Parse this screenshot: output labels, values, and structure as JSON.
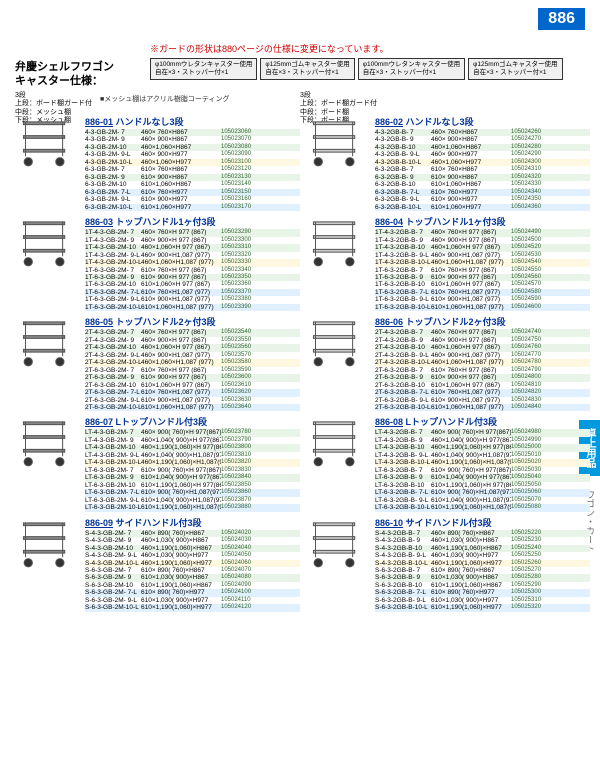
{
  "pageNum": "886",
  "notice": "※ガードの形状は880ページの仕様に変更になっています。",
  "title1": "弁慶シェルフワゴン",
  "title2": "キャスター仕様：",
  "casters": [
    {
      "l1": "φ100mmウレタンキャスター使用",
      "l2": "自在×3・ストッパー付×1"
    },
    {
      "l1": "φ125mmゴムキャスター使用",
      "l2": "自在×3・ストッパー付×1"
    },
    {
      "l1": "φ100mmウレタンキャスター使用",
      "l2": "自在×3・ストッパー付×1"
    },
    {
      "l1": "φ125mmゴムキャスター使用",
      "l2": "自在×3・ストッパー付×1"
    }
  ],
  "tierLeft": "3段\n上段：ボード棚ガード付\n中段：メッシュ棚\n下段：メッシュ棚",
  "tierRight": "3段\n上段：ボード棚ガード付\n中段：ボード棚\n下段：ボード棚",
  "meshNote": "■メッシュ棚はアクリル樹脂コーティング",
  "sideTab": "卓上用品",
  "sideLabel": "ワゴン・カート",
  "colors": {
    "accent": "#0066cc",
    "link": "#003399",
    "notice": "#cc0000",
    "alt1": "#e8f4e8",
    "alt2": "#fff8e0",
    "alt3": "#e0f0ff"
  },
  "sections": [
    {
      "left": {
        "code": "886-01",
        "title": "ハンドルなし3段",
        "rows": [
          {
            "m": "4-3-GB-2M- 7",
            "d": "460× 760×H867",
            "p": "105023060"
          },
          {
            "m": "4-3-GB-2M- 9",
            "d": "460× 900×H867",
            "p": "105023070"
          },
          {
            "m": "4-3-GB-2M-10",
            "d": "460×1,060×H867",
            "p": "105023080"
          },
          {
            "m": "4-3-GB-2M- 9-L",
            "d": "460× 900×H977",
            "p": "105023090"
          },
          {
            "m": "4-3-GB-2M-10-L",
            "d": "460×1,060×H977",
            "p": "105023100"
          },
          {
            "m": "6-3-GB-2M- 7",
            "d": "610× 760×H867",
            "p": "105023120"
          },
          {
            "m": "6-3-GB-2M- 9",
            "d": "610× 900×H867",
            "p": "105023130"
          },
          {
            "m": "6-3-GB-2M-10",
            "d": "610×1,060×H867",
            "p": "105023140"
          },
          {
            "m": "6-3-GB-2M- 7-L",
            "d": "610× 760×H977",
            "p": "105023150"
          },
          {
            "m": "6-3-GB-2M- 9-L",
            "d": "610× 900×H977",
            "p": "105023160"
          },
          {
            "m": "6-3-GB-2M-10-L",
            "d": "610×1,060×H977",
            "p": "105023170"
          }
        ]
      },
      "right": {
        "code": "886-02",
        "title": "ハンドルなし3段",
        "rows": [
          {
            "m": "4-3-2GB-B- 7",
            "d": "460× 760×H867",
            "p": "105024260"
          },
          {
            "m": "4-3-2GB-B- 9",
            "d": "460× 900×H867",
            "p": "105024270"
          },
          {
            "m": "4-3-2GB-B-10",
            "d": "460×1,060×H867",
            "p": "105024280"
          },
          {
            "m": "4-3-2GB-B- 9-L",
            "d": "460× 900×H977",
            "p": "105024290"
          },
          {
            "m": "4-3-2GB-B-10-L",
            "d": "460×1,060×H977",
            "p": "105024300"
          },
          {
            "m": "6-3-2GB-B- 7",
            "d": "610× 760×H867",
            "p": "105024310"
          },
          {
            "m": "6-3-2GB-B- 9",
            "d": "610× 900×H867",
            "p": "105024320"
          },
          {
            "m": "6-3-2GB-B-10",
            "d": "610×1,060×H867",
            "p": "105024330"
          },
          {
            "m": "6-3-2GB-B- 7-L",
            "d": "610× 760×H977",
            "p": "105024340"
          },
          {
            "m": "6-3-2GB-B- 9-L",
            "d": "610× 900×H977",
            "p": "105024350"
          },
          {
            "m": "6-3-2GB-B-10-L",
            "d": "610×1,060×H977",
            "p": "105024360"
          }
        ]
      }
    },
    {
      "left": {
        "code": "886-03",
        "title": "トップハンドル1ヶ付3段",
        "rows": [
          {
            "m": "1T-4-3-GB-2M- 7",
            "d": "460× 760×H 977 (867)",
            "p": "105023290"
          },
          {
            "m": "1T-4-3-GB-2M- 9",
            "d": "460× 900×H 977 (867)",
            "p": "105023300"
          },
          {
            "m": "1T-4-3-GB-2M-10",
            "d": "460×1,060×H 977 (867)",
            "p": "105023310"
          },
          {
            "m": "1T-4-3-GB-2M- 9-L",
            "d": "460× 900×H1,087 (977)",
            "p": "105023320"
          },
          {
            "m": "1T-4-3-GB-2M-10-L",
            "d": "460×1,060×H1,087 (977)",
            "p": "105023330"
          },
          {
            "m": "1T-6-3-GB-2M- 7",
            "d": "610× 760×H 977 (867)",
            "p": "105023340"
          },
          {
            "m": "1T-6-3-GB-2M- 9",
            "d": "610× 900×H 977 (867)",
            "p": "105023350"
          },
          {
            "m": "1T-6-3-GB-2M-10",
            "d": "610×1,060×H 977 (867)",
            "p": "105023360"
          },
          {
            "m": "1T-6-3-GB-2M- 7-L",
            "d": "610× 760×H1,087 (977)",
            "p": "105023370"
          },
          {
            "m": "1T-6-3-GB-2M- 9-L",
            "d": "610× 900×H1,087 (977)",
            "p": "105023380"
          },
          {
            "m": "1T-6-3-GB-2M-10-L",
            "d": "610×1,060×H1,087 (977)",
            "p": "105023390"
          }
        ]
      },
      "right": {
        "code": "886-04",
        "title": "トップハンドル1ヶ付3段",
        "rows": [
          {
            "m": "1T-4-3-2GB-B- 7",
            "d": "460× 760×H 977 (867)",
            "p": "105024490"
          },
          {
            "m": "1T-4-3-2GB-B- 9",
            "d": "460× 900×H 977 (867)",
            "p": "105024500"
          },
          {
            "m": "1T-4-3-2GB-B-10",
            "d": "460×1,060×H 977 (867)",
            "p": "105024520"
          },
          {
            "m": "1T-4-3-2GB-B- 9-L",
            "d": "460× 900×H1,087 (977)",
            "p": "105024530"
          },
          {
            "m": "1T-4-3-2GB-B-10-L",
            "d": "460×1,060×H1,087 (977)",
            "p": "105024540"
          },
          {
            "m": "1T-6-3-2GB-B- 7",
            "d": "610× 760×H 977 (867)",
            "p": "105024550"
          },
          {
            "m": "1T-6-3-2GB-B- 9",
            "d": "610× 900×H 977 (867)",
            "p": "105024560"
          },
          {
            "m": "1T-6-3-2GB-B-10",
            "d": "610×1,060×H 977 (867)",
            "p": "105024570"
          },
          {
            "m": "1T-6-3-2GB-B- 7-L",
            "d": "610× 760×H1,087 (977)",
            "p": "105024580"
          },
          {
            "m": "1T-6-3-2GB-B- 9-L",
            "d": "610× 900×H1,087 (977)",
            "p": "105024590"
          },
          {
            "m": "1T-6-3-2GB-B-10-L",
            "d": "610×1,060×H1,087 (977)",
            "p": "105024600"
          }
        ]
      }
    },
    {
      "left": {
        "code": "886-05",
        "title": "トップハンドル2ヶ付3段",
        "rows": [
          {
            "m": "2T-4-3-GB-2M- 7",
            "d": "460× 760×H 977 (867)",
            "p": "105023540"
          },
          {
            "m": "2T-4-3-GB-2M- 9",
            "d": "460× 900×H 977 (867)",
            "p": "105023550"
          },
          {
            "m": "2T-4-3-GB-2M-10",
            "d": "460×1,060×H 977 (867)",
            "p": "105023560"
          },
          {
            "m": "2T-4-3-GB-2M- 9-L",
            "d": "460× 900×H1,087 (977)",
            "p": "105023570"
          },
          {
            "m": "2T-4-3-GB-2M-10-L",
            "d": "460×1,060×H1,087 (977)",
            "p": "105023580"
          },
          {
            "m": "2T-6-3-GB-2M- 7",
            "d": "610× 760×H 977 (867)",
            "p": "105023590"
          },
          {
            "m": "2T-6-3-GB-2M- 9",
            "d": "610× 900×H 977 (867)",
            "p": "105023600"
          },
          {
            "m": "2T-6-3-GB-2M-10",
            "d": "610×1,060×H 977 (867)",
            "p": "105023610"
          },
          {
            "m": "2T-6-3-GB-2M- 7-L",
            "d": "610× 760×H1,087 (977)",
            "p": "105023620"
          },
          {
            "m": "2T-6-3-GB-2M- 9-L",
            "d": "610× 900×H1,087 (977)",
            "p": "105023630"
          },
          {
            "m": "2T-6-3-GB-2M-10-L",
            "d": "610×1,060×H1,087 (977)",
            "p": "105023640"
          }
        ]
      },
      "right": {
        "code": "886-06",
        "title": "トップハンドル2ヶ付3段",
        "rows": [
          {
            "m": "2T-4-3-2GB-B- 7",
            "d": "460× 760×H 977 (867)",
            "p": "105024740"
          },
          {
            "m": "2T-4-3-2GB-B- 9",
            "d": "460× 900×H 977 (867)",
            "p": "105024750"
          },
          {
            "m": "2T-4-3-2GB-B-10",
            "d": "460×1,060×H 977 (867)",
            "p": "105024760"
          },
          {
            "m": "2T-4-3-2GB-B- 9-L",
            "d": "460× 900×H1,087 (977)",
            "p": "105024770"
          },
          {
            "m": "2T-4-3-2GB-B-10-L",
            "d": "460×1,060×H1,087 (977)",
            "p": "105024780"
          },
          {
            "m": "2T-6-3-2GB-B- 7",
            "d": "610× 760×H 977 (867)",
            "p": "105024790"
          },
          {
            "m": "2T-6-3-2GB-B- 9",
            "d": "610× 900×H 977 (867)",
            "p": "105024800"
          },
          {
            "m": "2T-6-3-2GB-B-10",
            "d": "610×1,060×H 977 (867)",
            "p": "105024810"
          },
          {
            "m": "2T-6-3-2GB-B- 7-L",
            "d": "610× 760×H1,087 (977)",
            "p": "105024820"
          },
          {
            "m": "2T-6-3-2GB-B- 9-L",
            "d": "610× 900×H1,087 (977)",
            "p": "105024830"
          },
          {
            "m": "2T-6-3-2GB-B-10-L",
            "d": "610×1,060×H1,087 (977)",
            "p": "105024840"
          }
        ]
      }
    },
    {
      "left": {
        "code": "886-07",
        "title": "Lトップハンドル付3段",
        "rows": [
          {
            "m": "LT-4-3-GB-2M- 7",
            "d": "460× 900( 760)×H 977(867)",
            "p": "105023780"
          },
          {
            "m": "LT-4-3-GB-2M- 9",
            "d": "460×1,040( 900)×H 977(867)",
            "p": "105023790"
          },
          {
            "m": "LT-4-3-GB-2M-10",
            "d": "460×1,190(1,060)×H 977(867)",
            "p": "105023800"
          },
          {
            "m": "LT-4-3-GB-2M- 9-L",
            "d": "460×1,040( 900)×H1,087(977)",
            "p": "105023810"
          },
          {
            "m": "LT-4-3-GB-2M-10-L",
            "d": "460×1,190(1,060)×H1,087(977)",
            "p": "105023820"
          },
          {
            "m": "LT-6-3-GB-2M- 7",
            "d": "610× 900( 760)×H 977(867)",
            "p": "105023830"
          },
          {
            "m": "LT-6-3-GB-2M- 9",
            "d": "610×1,040( 900)×H 977(867)",
            "p": "105023840"
          },
          {
            "m": "LT-6-3-GB-2M-10",
            "d": "610×1,190(1,060)×H 977(867)",
            "p": "105023850"
          },
          {
            "m": "LT-6-3-GB-2M- 7-L",
            "d": "610× 900( 760)×H1,087(977)",
            "p": "105023860"
          },
          {
            "m": "LT-6-3-GB-2M- 9-L",
            "d": "610×1,040( 900)×H1,087(977)",
            "p": "105023870"
          },
          {
            "m": "LT-6-3-GB-2M-10-L",
            "d": "610×1,190(1,060)×H1,087(977)",
            "p": "105023880"
          }
        ]
      },
      "right": {
        "code": "886-08",
        "title": "Lトップハンドル付3段",
        "rows": [
          {
            "m": "LT-4-3-2GB-B- 7",
            "d": "460× 900( 760)×H 977(867)",
            "p": "105024980"
          },
          {
            "m": "LT-4-3-2GB-B- 9",
            "d": "460×1,040( 900)×H 977(867)",
            "p": "105024990"
          },
          {
            "m": "LT-4-3-2GB-B-10",
            "d": "460×1,190(1,060)×H 977(867)",
            "p": "105025000"
          },
          {
            "m": "LT-4-3-2GB-B- 9-L",
            "d": "460×1,040( 900)×H1,087(977)",
            "p": "105025010"
          },
          {
            "m": "LT-4-3-2GB-B-10-L",
            "d": "460×1,190(1,060)×H1,087(977)",
            "p": "105025020"
          },
          {
            "m": "LT-6-3-2GB-B- 7",
            "d": "610× 900( 760)×H 977(867)",
            "p": "105025030"
          },
          {
            "m": "LT-6-3-2GB-B- 9",
            "d": "610×1,040( 900)×H 977(867)",
            "p": "105025040"
          },
          {
            "m": "LT-6-3-2GB-B-10",
            "d": "610×1,190(1,060)×H 977(867)",
            "p": "105025050"
          },
          {
            "m": "LT-6-3-2GB-B- 7-L",
            "d": "610× 900( 760)×H1,087(977)",
            "p": "105025060"
          },
          {
            "m": "LT-6-3-2GB-B- 9-L",
            "d": "610×1,040( 900)×H1,087(977)",
            "p": "105025070"
          },
          {
            "m": "LT-6-3-2GB-B-10-L",
            "d": "610×1,190(1,060)×H1,087(977)",
            "p": "105025080"
          }
        ]
      }
    },
    {
      "left": {
        "code": "886-09",
        "title": "サイドハンドル付3段",
        "rows": [
          {
            "m": "S-4-3-GB-2M- 7",
            "d": "460× 890( 760)×H867",
            "p": "105024020"
          },
          {
            "m": "S-4-3-GB-2M- 9",
            "d": "460×1,030( 900)×H867",
            "p": "105024030"
          },
          {
            "m": "S-4-3-GB-2M-10",
            "d": "460×1,190(1,060)×H867",
            "p": "105024040"
          },
          {
            "m": "S-4-3-GB-2M- 9-L",
            "d": "460×1,030( 900)×H977",
            "p": "105024050"
          },
          {
            "m": "S-4-3-GB-2M-10-L",
            "d": "460×1,190(1,060)×H977",
            "p": "105024060"
          },
          {
            "m": "S-6-3-GB-2M- 7",
            "d": "610× 890( 760)×H867",
            "p": "105024070"
          },
          {
            "m": "S-6-3-GB-2M- 9",
            "d": "610×1,030( 900)×H867",
            "p": "105024080"
          },
          {
            "m": "S-6-3-GB-2M-10",
            "d": "610×1,190(1,060)×H867",
            "p": "105024090"
          },
          {
            "m": "S-6-3-GB-2M- 7-L",
            "d": "610× 890( 760)×H977",
            "p": "105024100"
          },
          {
            "m": "S-6-3-GB-2M- 9-L",
            "d": "610×1,030( 900)×H977",
            "p": "105024110"
          },
          {
            "m": "S-6-3-GB-2M-10-L",
            "d": "610×1,190(1,060)×H977",
            "p": "105024120"
          }
        ]
      },
      "right": {
        "code": "886-10",
        "title": "サイドハンドル付3段",
        "rows": [
          {
            "m": "S-4-3-2GB-B- 7",
            "d": "460× 890( 760)×H867",
            "p": "105025220"
          },
          {
            "m": "S-4-3-2GB-B- 9",
            "d": "460×1,030( 900)×H867",
            "p": "105025230"
          },
          {
            "m": "S-4-3-2GB-B-10",
            "d": "460×1,190(1,060)×H867",
            "p": "105025240"
          },
          {
            "m": "S-4-3-2GB-B- 9-L",
            "d": "460×1,030( 900)×H977",
            "p": "105025250"
          },
          {
            "m": "S-4-3-2GB-B-10-L",
            "d": "460×1,190(1,060)×H977",
            "p": "105025260"
          },
          {
            "m": "S-6-3-2GB-B- 7",
            "d": "610× 890( 760)×H867",
            "p": "105025270"
          },
          {
            "m": "S-6-3-2GB-B- 9",
            "d": "610×1,030( 900)×H867",
            "p": "105025280"
          },
          {
            "m": "S-6-3-2GB-B-10",
            "d": "610×1,190(1,060)×H867",
            "p": "105025290"
          },
          {
            "m": "S-6-3-2GB-B- 7-L",
            "d": "610× 890( 760)×H977",
            "p": "105025300"
          },
          {
            "m": "S-6-3-2GB-B- 9-L",
            "d": "610×1,030( 900)×H977",
            "p": "105025310"
          },
          {
            "m": "S-6-3-2GB-B-10-L",
            "d": "610×1,190(1,060)×H977",
            "p": "105025320"
          }
        ]
      }
    }
  ]
}
